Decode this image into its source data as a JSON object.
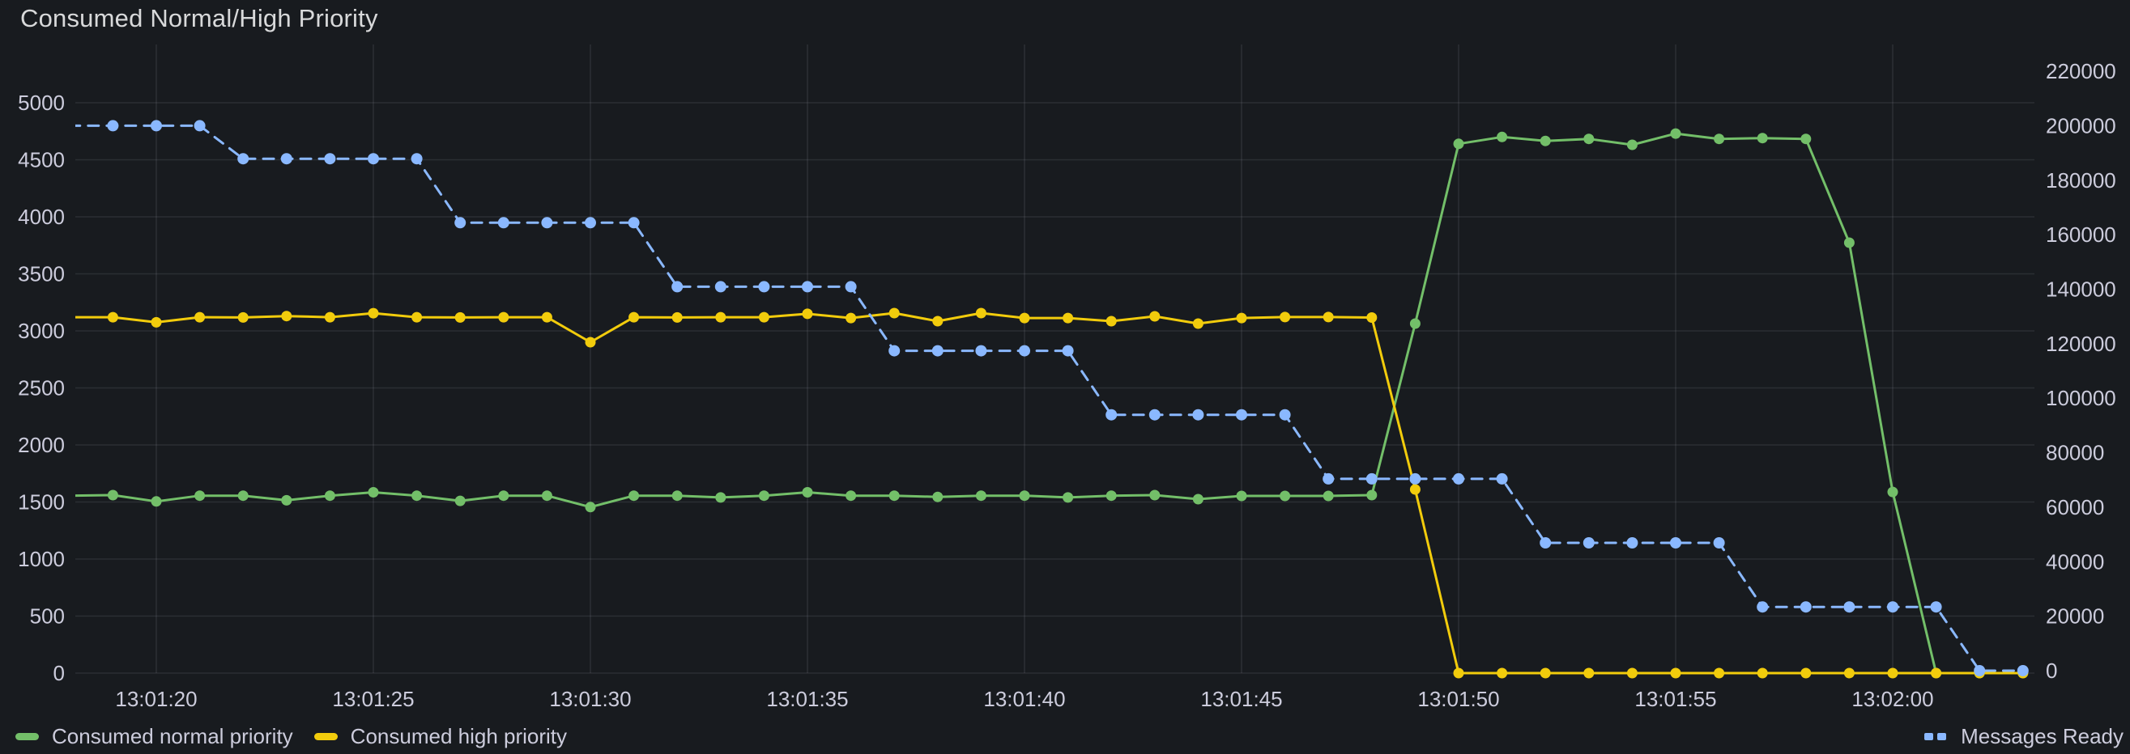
{
  "panel": {
    "title": "Consumed Normal/High Priority"
  },
  "colors": {
    "background": "#181b1f",
    "title_text": "#d8d9da",
    "tick_text": "#ccccdc",
    "legend_text": "#ccccdc",
    "grid": "rgba(204,204,220,0.11)",
    "green": "#73bf69",
    "yellow": "#f2cc0c",
    "blue": "#8ab8ff"
  },
  "legend": {
    "left_items": [
      {
        "label": "Consumed normal priority",
        "series_index": 0
      },
      {
        "label": "Consumed high priority",
        "series_index": 1
      }
    ],
    "right_items": [
      {
        "label": "Messages Ready",
        "series_index": 2
      }
    ]
  },
  "chart_data": {
    "type": "line",
    "title": "Consumed Normal/High Priority",
    "grid": true,
    "legend_position": "bottom",
    "x_axis": {
      "anchor_label": "13:01:20",
      "tick_labels": [
        "13:01:20",
        "13:01:25",
        "13:01:30",
        "13:01:35",
        "13:01:40",
        "13:01:45",
        "13:01:50",
        "13:01:55",
        "13:02:00"
      ],
      "times": [
        "13:01:18",
        "13:01:19",
        "13:01:20",
        "13:01:21",
        "13:01:22",
        "13:01:23",
        "13:01:24",
        "13:01:25",
        "13:01:26",
        "13:01:27",
        "13:01:28",
        "13:01:29",
        "13:01:30",
        "13:01:31",
        "13:01:32",
        "13:01:33",
        "13:01:34",
        "13:01:35",
        "13:01:36",
        "13:01:37",
        "13:01:38",
        "13:01:39",
        "13:01:40",
        "13:01:41",
        "13:01:42",
        "13:01:43",
        "13:01:44",
        "13:01:45",
        "13:01:46",
        "13:01:47",
        "13:01:48",
        "13:01:49",
        "13:01:50",
        "13:01:51",
        "13:01:52",
        "13:01:53",
        "13:01:54",
        "13:01:55",
        "13:01:56",
        "13:01:57",
        "13:01:58",
        "13:01:59",
        "13:02:00",
        "13:02:01",
        "13:02:02",
        "13:02:03"
      ]
    },
    "y_left": {
      "ticks": [
        0,
        500,
        1000,
        1500,
        2000,
        2500,
        3000,
        3500,
        4000,
        4500,
        5000
      ],
      "range": [
        0,
        5510
      ]
    },
    "y_right": {
      "ticks": [
        0,
        20000,
        40000,
        60000,
        80000,
        100000,
        120000,
        140000,
        160000,
        180000,
        200000,
        220000
      ],
      "range": [
        0,
        229500
      ]
    },
    "series": [
      {
        "name": "Consumed normal priority",
        "axis": "left",
        "color": "#73bf69",
        "line_style": "solid",
        "marker": "circle",
        "values": [
          1555,
          1560,
          1505,
          1555,
          1555,
          1515,
          1555,
          1585,
          1555,
          1510,
          1555,
          1555,
          1455,
          1555,
          1555,
          1540,
          1555,
          1585,
          1555,
          1555,
          1545,
          1555,
          1555,
          1540,
          1555,
          1560,
          1525,
          1553,
          1553,
          1553,
          1560,
          3064,
          4640,
          4700,
          4665,
          4683,
          4631,
          4730,
          4683,
          4690,
          4683,
          3773,
          1588,
          0,
          0,
          0
        ]
      },
      {
        "name": "Consumed high priority",
        "axis": "left",
        "color": "#f2cc0c",
        "line_style": "solid",
        "marker": "circle",
        "values": [
          3120,
          3120,
          3075,
          3120,
          3118,
          3130,
          3120,
          3155,
          3120,
          3118,
          3120,
          3120,
          2901,
          3120,
          3118,
          3120,
          3120,
          3150,
          3113,
          3156,
          3085,
          3156,
          3113,
          3113,
          3085,
          3128,
          3064,
          3113,
          3121,
          3121,
          3117,
          1610,
          0,
          0,
          0,
          0,
          0,
          0,
          0,
          0,
          0,
          0,
          0,
          0,
          0,
          0
        ]
      },
      {
        "name": "Messages Ready",
        "axis": "right",
        "color": "#8ab8ff",
        "line_style": "dashed",
        "marker": "circle",
        "values": [
          200000,
          200000,
          200000,
          200000,
          187900,
          187900,
          187900,
          187900,
          187900,
          164400,
          164400,
          164400,
          164400,
          164400,
          140900,
          140900,
          140900,
          140900,
          140900,
          117400,
          117400,
          117400,
          117400,
          117400,
          93900,
          93900,
          93900,
          93900,
          93900,
          70400,
          70400,
          70400,
          70400,
          70400,
          46900,
          46900,
          46900,
          46900,
          46900,
          23400,
          23400,
          23400,
          23400,
          23400,
          0,
          0
        ]
      }
    ]
  }
}
